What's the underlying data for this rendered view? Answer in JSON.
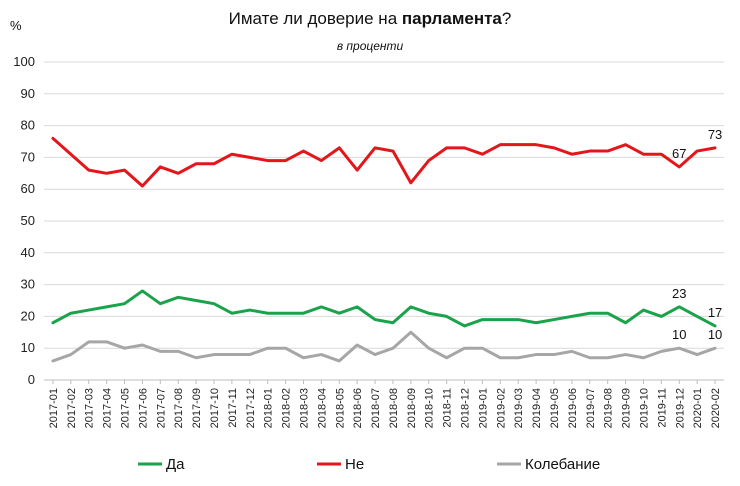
{
  "chart_data": {
    "type": "line",
    "title_pre": "Имате ли доверие на ",
    "title_bold": "парламента",
    "title_post": "?",
    "subtitle": "в проценти",
    "ylabel": "%",
    "ylim": [
      0,
      100
    ],
    "yticks": [
      "0",
      "10",
      "20",
      "30",
      "40",
      "50",
      "60",
      "70",
      "80",
      "90",
      "100"
    ],
    "grid": true,
    "legend_position": "bottom",
    "categories": [
      "2017-01",
      "2017-02",
      "2017-03",
      "2017-04",
      "2017-05",
      "2017-06",
      "2017-07",
      "2017-08",
      "2017-09",
      "2017-10",
      "2017-11",
      "2017-12",
      "2018-01",
      "2018-02",
      "2018-03",
      "2018-04",
      "2018-05",
      "2018-06",
      "2018-07",
      "2018-08",
      "2018-09",
      "2018-10",
      "2018-11",
      "2018-12",
      "2019-01",
      "2019-02",
      "2019-03",
      "2019-04",
      "2019-05",
      "2019-06",
      "2019-07",
      "2019-08",
      "2019-09",
      "2019-10",
      "2019-11",
      "2019-12",
      "2020-01",
      "2020-02"
    ],
    "series": [
      {
        "name": "Да",
        "color": "#1aa34a",
        "values": [
          18,
          21,
          22,
          23,
          24,
          28,
          24,
          26,
          25,
          24,
          21,
          22,
          21,
          21,
          21,
          23,
          21,
          23,
          19,
          18,
          23,
          21,
          20,
          17,
          19,
          19,
          19,
          18,
          19,
          20,
          21,
          21,
          18,
          22,
          20,
          23,
          20,
          17
        ]
      },
      {
        "name": "Не",
        "color": "#e3161b",
        "values": [
          76,
          71,
          66,
          65,
          66,
          61,
          67,
          65,
          68,
          68,
          71,
          70,
          69,
          69,
          72,
          69,
          73,
          66,
          73,
          72,
          62,
          69,
          73,
          73,
          71,
          74,
          74,
          74,
          73,
          71,
          72,
          72,
          74,
          71,
          71,
          67,
          72,
          73
        ]
      },
      {
        "name": "Колебание",
        "color": "#a6a6a6",
        "values": [
          6,
          8,
          12,
          12,
          10,
          11,
          9,
          9,
          7,
          8,
          8,
          8,
          10,
          10,
          7,
          8,
          6,
          11,
          8,
          10,
          15,
          10,
          7,
          10,
          10,
          7,
          7,
          8,
          8,
          9,
          7,
          7,
          8,
          7,
          9,
          10,
          8,
          10
        ]
      }
    ],
    "data_labels": [
      {
        "series": 1,
        "index": 35,
        "text": "67"
      },
      {
        "series": 1,
        "index": 37,
        "text": "73"
      },
      {
        "series": 0,
        "index": 35,
        "text": "23"
      },
      {
        "series": 0,
        "index": 37,
        "text": "17"
      },
      {
        "series": 2,
        "index": 35,
        "text": "10"
      },
      {
        "series": 2,
        "index": 37,
        "text": "10"
      }
    ]
  }
}
